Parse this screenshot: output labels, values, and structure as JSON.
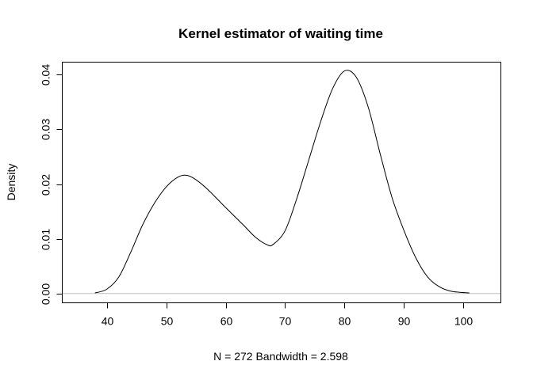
{
  "chart_data": {
    "type": "line",
    "title": "Kernel estimator of waiting time",
    "xlabel": "N = 272   Bandwidth = 2.598",
    "ylabel": "Density",
    "xlim": [
      32.5,
      106.3
    ],
    "ylim": [
      -0.0017,
      0.0423
    ],
    "x_ticks": [
      40,
      50,
      60,
      70,
      80,
      90,
      100
    ],
    "x_tick_labels": [
      "40",
      "50",
      "60",
      "70",
      "80",
      "90",
      "100"
    ],
    "y_ticks": [
      0,
      0.01,
      0.02,
      0.03,
      0.04
    ],
    "y_tick_labels": [
      "0.00",
      "0.01",
      "0.02",
      "0.03",
      "0.04"
    ],
    "baseline": 0,
    "grid": false,
    "colors": {
      "line": "#000000",
      "baseline": "#bebebe",
      "frame": "#000000"
    },
    "series": [
      {
        "name": "density",
        "x": [
          38,
          40,
          42,
          44,
          46,
          48,
          50,
          52,
          53.5,
          55,
          57,
          60,
          63,
          65,
          67,
          68,
          70,
          72,
          74,
          76,
          78,
          80,
          82,
          84,
          86,
          88,
          90,
          92,
          94,
          96,
          98,
          101
        ],
        "y": [
          0.0001,
          0.0008,
          0.003,
          0.0075,
          0.0125,
          0.0165,
          0.0195,
          0.0213,
          0.0216,
          0.0208,
          0.019,
          0.0157,
          0.0125,
          0.0103,
          0.0089,
          0.009,
          0.0115,
          0.0175,
          0.0245,
          0.0315,
          0.0375,
          0.0407,
          0.0395,
          0.034,
          0.0255,
          0.0175,
          0.0115,
          0.0065,
          0.003,
          0.0012,
          0.0004,
          0.0001
        ]
      }
    ]
  }
}
